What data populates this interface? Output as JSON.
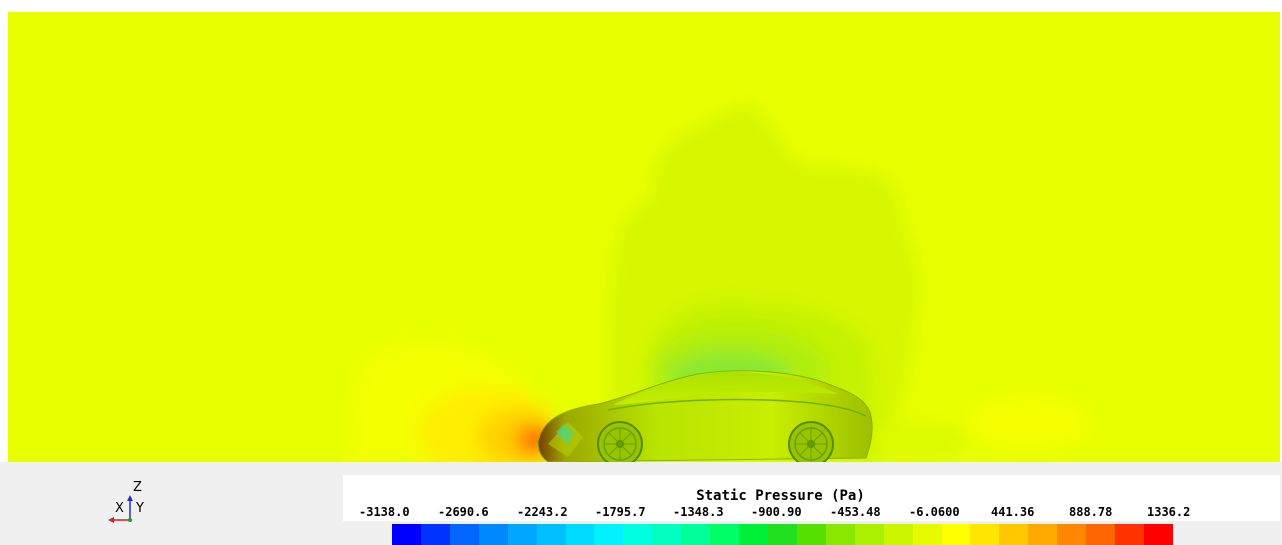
{
  "legend": {
    "title": "Static Pressure (Pa)",
    "ticks": [
      "-3138.0",
      "-2690.6",
      "-2243.2",
      "-1795.7",
      "-1348.3",
      "-900.90",
      "-453.48",
      "-6.0600",
      "441.36",
      "888.78",
      "1336.2"
    ],
    "colormap": [
      "#0000ff",
      "#0033ff",
      "#0066ff",
      "#0088ff",
      "#00a6ff",
      "#00c0ff",
      "#00dcff",
      "#00f2ff",
      "#00ffe0",
      "#00ffc0",
      "#00ff99",
      "#00ff66",
      "#00f03a",
      "#22e020",
      "#55e000",
      "#88e800",
      "#aaf000",
      "#ccf500",
      "#e6fa00",
      "#ffff00",
      "#ffe600",
      "#ffc800",
      "#ffaa00",
      "#ff8800",
      "#ff6600",
      "#ff3300",
      "#ff0000"
    ]
  },
  "axis_triad": {
    "z_label": "Z",
    "x_label": "X",
    "y_label": "Y"
  },
  "field_colors": {
    "background": "#e8ff00",
    "wake": "#ccf500",
    "low_pressure": "#aaf000",
    "high_pressure": "#ffc800",
    "stagnation": "#ff3300",
    "vehicle_body": "#c8f000",
    "ground_band": "#f0f0f0"
  }
}
